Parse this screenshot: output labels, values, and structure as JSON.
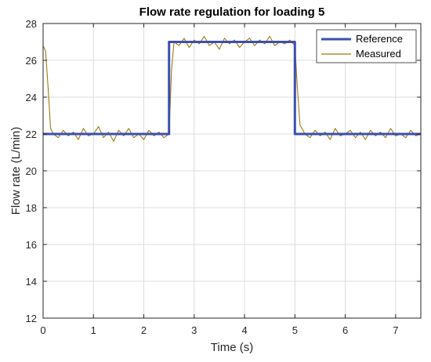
{
  "chart_data": {
    "type": "line",
    "title": "Flow rate regulation for loading 5",
    "xlabel": "Time (s)",
    "ylabel": "Flow rate (L/min)",
    "xlim": [
      0,
      7.5
    ],
    "ylim": [
      12,
      28
    ],
    "xticks": [
      0,
      1,
      2,
      3,
      4,
      5,
      6,
      7
    ],
    "yticks": [
      12,
      14,
      16,
      18,
      20,
      22,
      24,
      26,
      28
    ],
    "grid": true,
    "legend_position": "top-right",
    "series": [
      {
        "name": "Reference",
        "color": "#3b4fb0",
        "x": [
          0,
          2.5,
          2.5,
          5.0,
          5.0,
          7.5
        ],
        "y": [
          22,
          22,
          27,
          27,
          22,
          22
        ]
      },
      {
        "name": "Measured",
        "color": "#9c7a14",
        "x": [
          0,
          0.05,
          0.1,
          0.15,
          0.2,
          0.3,
          0.4,
          0.5,
          0.6,
          0.7,
          0.8,
          0.9,
          1.0,
          1.1,
          1.2,
          1.3,
          1.4,
          1.5,
          1.6,
          1.7,
          1.8,
          1.9,
          2.0,
          2.1,
          2.2,
          2.3,
          2.4,
          2.5,
          2.55,
          2.6,
          2.7,
          2.8,
          2.9,
          3.0,
          3.1,
          3.2,
          3.3,
          3.4,
          3.5,
          3.6,
          3.7,
          3.8,
          3.9,
          4.0,
          4.1,
          4.2,
          4.3,
          4.4,
          4.5,
          4.6,
          4.7,
          4.8,
          4.9,
          5.0,
          5.05,
          5.1,
          5.2,
          5.3,
          5.4,
          5.5,
          5.6,
          5.7,
          5.8,
          5.9,
          6.0,
          6.1,
          6.2,
          6.3,
          6.4,
          6.5,
          6.6,
          6.7,
          6.8,
          6.9,
          7.0,
          7.1,
          7.2,
          7.3,
          7.4,
          7.5
        ],
        "y": [
          26.8,
          26.5,
          24.5,
          22.3,
          22.0,
          21.8,
          22.2,
          21.9,
          22.1,
          21.7,
          22.3,
          21.9,
          22.0,
          22.4,
          21.8,
          22.1,
          21.6,
          22.2,
          21.9,
          22.3,
          21.8,
          22.0,
          21.7,
          22.2,
          21.9,
          22.1,
          21.8,
          22.0,
          25.5,
          27.0,
          26.8,
          27.2,
          26.7,
          27.1,
          26.9,
          27.3,
          26.8,
          27.0,
          26.6,
          27.2,
          26.9,
          27.1,
          26.7,
          27.0,
          27.2,
          26.8,
          27.1,
          26.9,
          27.3,
          26.8,
          27.0,
          26.9,
          27.1,
          26.8,
          24.5,
          22.5,
          22.0,
          21.8,
          22.2,
          21.9,
          22.1,
          21.7,
          22.3,
          21.9,
          22.0,
          22.2,
          21.8,
          22.1,
          21.7,
          22.2,
          21.9,
          22.1,
          21.8,
          22.3,
          21.9,
          22.0,
          21.8,
          22.2,
          21.9,
          22.0
        ]
      }
    ]
  }
}
